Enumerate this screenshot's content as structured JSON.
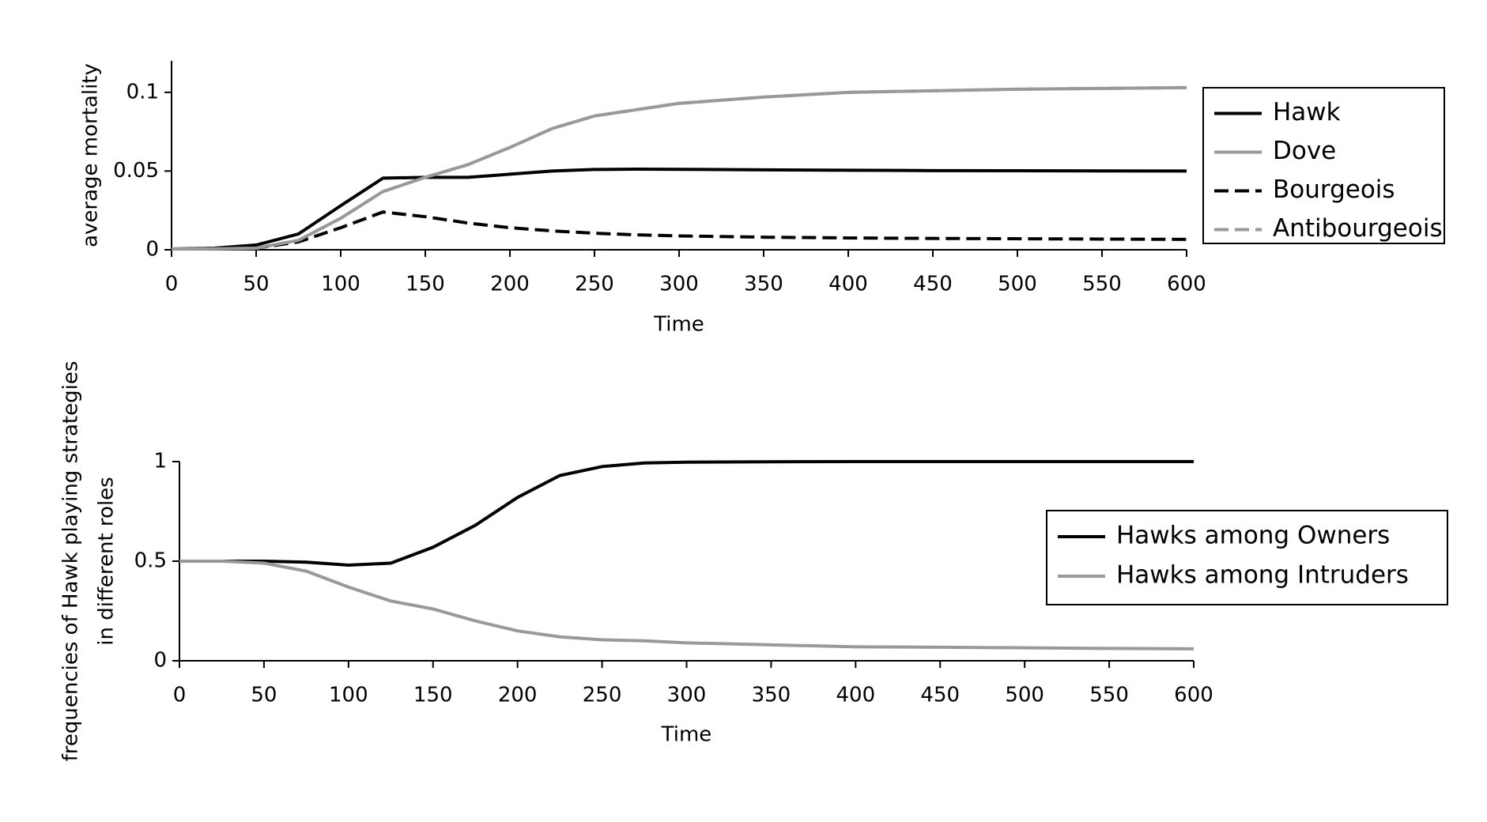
{
  "chart_data": [
    {
      "type": "line",
      "x_label": "Time",
      "y_label": [
        "average mortality"
      ],
      "x": [
        0,
        25,
        50,
        75,
        100,
        125,
        150,
        175,
        200,
        225,
        250,
        275,
        300,
        350,
        400,
        450,
        500,
        550,
        600
      ],
      "xlim": [
        0,
        600
      ],
      "xticks": [
        0,
        50,
        100,
        150,
        200,
        250,
        300,
        350,
        400,
        450,
        500,
        550,
        600
      ],
      "ylim": [
        0,
        0.12
      ],
      "yticks": [
        0,
        0.05,
        0.1
      ],
      "legend": "outside-right",
      "series": [
        {
          "name": "Hawk",
          "color": "#000000",
          "linestyle": "solid",
          "values": [
            0.0005,
            0.001,
            0.003,
            0.01,
            0.028,
            0.0455,
            0.046,
            0.046,
            0.048,
            0.05,
            0.051,
            0.0512,
            0.0511,
            0.0508,
            0.0505,
            0.0503,
            0.0502,
            0.0501,
            0.05
          ]
        },
        {
          "name": "Dove",
          "color": "#999999",
          "linestyle": "solid",
          "values": [
            0.0005,
            0.0006,
            0.001,
            0.006,
            0.02,
            0.037,
            0.046,
            0.054,
            0.065,
            0.077,
            0.085,
            0.089,
            0.093,
            0.097,
            0.1,
            0.101,
            0.102,
            0.1025,
            0.103
          ]
        },
        {
          "name": "Bourgeois",
          "color": "#000000",
          "linestyle": "dashed",
          "values": [
            0.0005,
            0.0006,
            0.001,
            0.005,
            0.014,
            0.024,
            0.021,
            0.017,
            0.014,
            0.012,
            0.0105,
            0.0095,
            0.0088,
            0.008,
            0.0075,
            0.0072,
            0.007,
            0.0068,
            0.0066
          ]
        },
        {
          "name": "Antibourgeois",
          "color": "#999999",
          "linestyle": "dashed",
          "values": [
            0.0005,
            0.0006,
            0.001,
            0.006,
            0.02,
            0.037,
            0.046,
            0.054,
            0.065,
            0.077,
            0.085,
            0.089,
            0.093,
            0.097,
            0.1,
            0.101,
            0.102,
            0.1025,
            0.103
          ]
        }
      ]
    },
    {
      "type": "line",
      "x_label": "Time",
      "y_label": [
        "frequencies of Hawk playing strategies",
        "in different roles"
      ],
      "x": [
        0,
        25,
        50,
        75,
        100,
        125,
        150,
        175,
        200,
        225,
        250,
        275,
        300,
        350,
        400,
        450,
        500,
        550,
        600
      ],
      "xlim": [
        0,
        600
      ],
      "xticks": [
        0,
        50,
        100,
        150,
        200,
        250,
        300,
        350,
        400,
        450,
        500,
        550,
        600
      ],
      "ylim": [
        0,
        1
      ],
      "yticks": [
        0,
        0.5,
        1
      ],
      "legend": "center-right",
      "series": [
        {
          "name": "Hawks among Owners",
          "color": "#000000",
          "linestyle": "solid",
          "values": [
            0.5,
            0.5,
            0.5,
            0.495,
            0.48,
            0.49,
            0.57,
            0.68,
            0.82,
            0.93,
            0.975,
            0.993,
            0.997,
            0.999,
            1,
            1,
            1,
            1,
            1
          ]
        },
        {
          "name": "Hawks among Intruders",
          "color": "#999999",
          "linestyle": "solid",
          "values": [
            0.5,
            0.5,
            0.49,
            0.45,
            0.37,
            0.3,
            0.26,
            0.2,
            0.15,
            0.12,
            0.105,
            0.1,
            0.09,
            0.08,
            0.07,
            0.068,
            0.065,
            0.062,
            0.06
          ]
        }
      ]
    }
  ]
}
